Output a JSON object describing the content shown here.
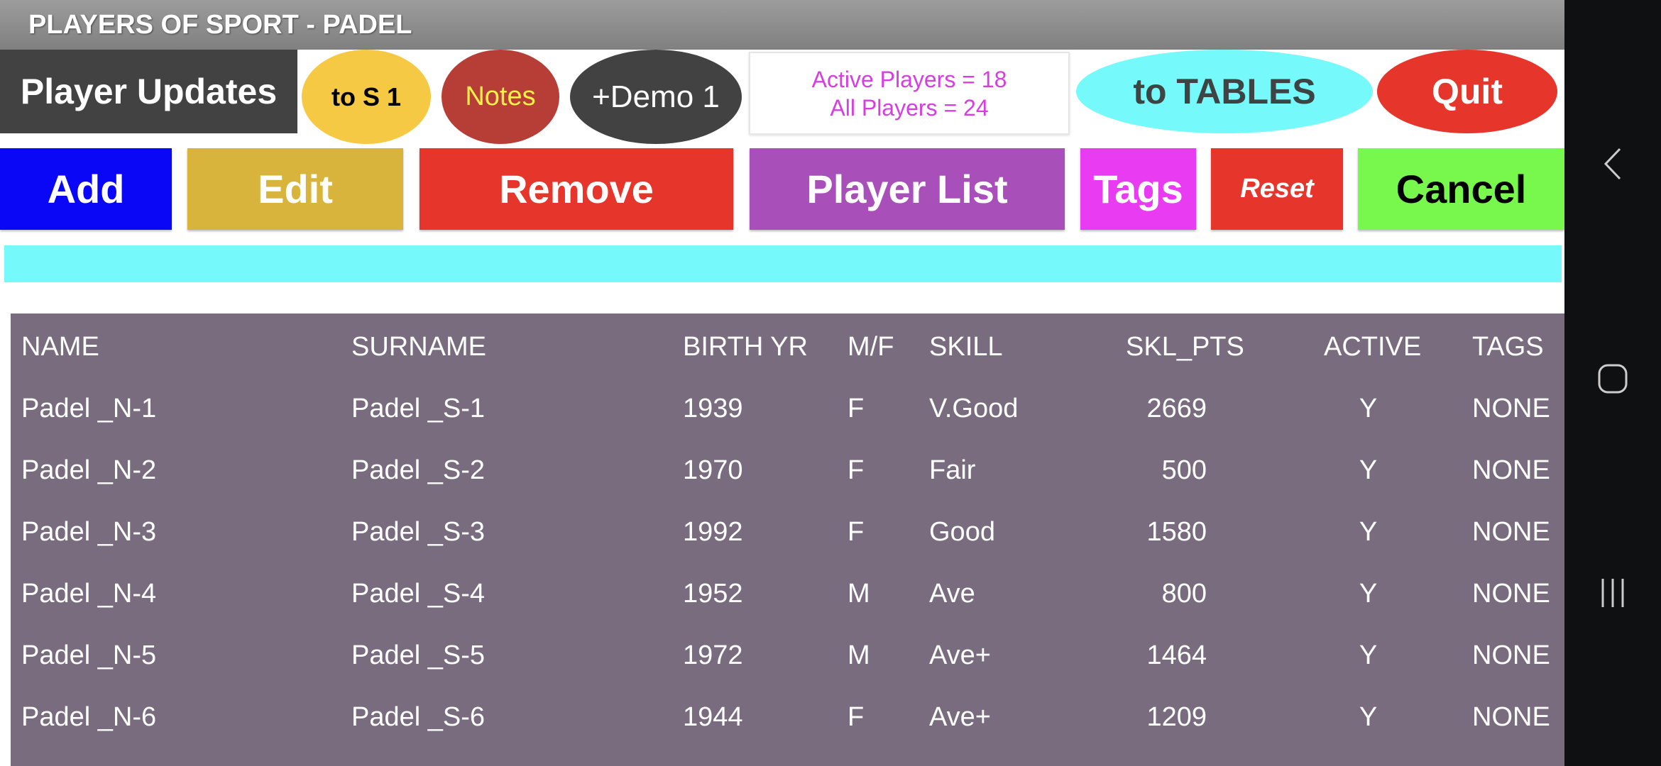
{
  "title": "PLAYERS OF SPORT - PADEL",
  "top": {
    "updates": "Player Updates",
    "to_s1": "to S 1",
    "notes": "Notes",
    "demo": "+Demo 1",
    "active": "Active Players = 18",
    "all": "All Players = 24",
    "tables": "to TABLES",
    "quit": "Quit"
  },
  "buttons": {
    "add": "Add",
    "edit": "Edit",
    "remove": "Remove",
    "player_list": "Player List",
    "tags": "Tags",
    "reset": "Reset",
    "cancel": "Cancel"
  },
  "table": {
    "headers": [
      "NAME",
      "SURNAME",
      "BIRTH YR",
      "M/F",
      "SKILL",
      "SKL_PTS",
      "ACTIVE",
      "TAGS"
    ],
    "rows": [
      [
        "Padel _N-1",
        "Padel _S-1",
        "1939",
        "F",
        "V.Good",
        "2669",
        "Y",
        "NONE"
      ],
      [
        "Padel _N-2",
        "Padel _S-2",
        "1970",
        "F",
        "Fair",
        "500",
        "Y",
        "NONE"
      ],
      [
        "Padel _N-3",
        "Padel _S-3",
        "1992",
        "F",
        "Good",
        "1580",
        "Y",
        "NONE"
      ],
      [
        "Padel _N-4",
        "Padel _S-4",
        "1952",
        "M",
        "Ave",
        "800",
        "Y",
        "NONE"
      ],
      [
        "Padel _N-5",
        "Padel _S-5",
        "1972",
        "M",
        "Ave+",
        "1464",
        "Y",
        "NONE"
      ],
      [
        "Padel _N-6",
        "Padel _S-6",
        "1944",
        "F",
        "Ave+",
        "1209",
        "Y",
        "NONE"
      ]
    ]
  },
  "nav": {
    "icons": [
      "back-icon",
      "home-icon",
      "recents-icon"
    ]
  }
}
